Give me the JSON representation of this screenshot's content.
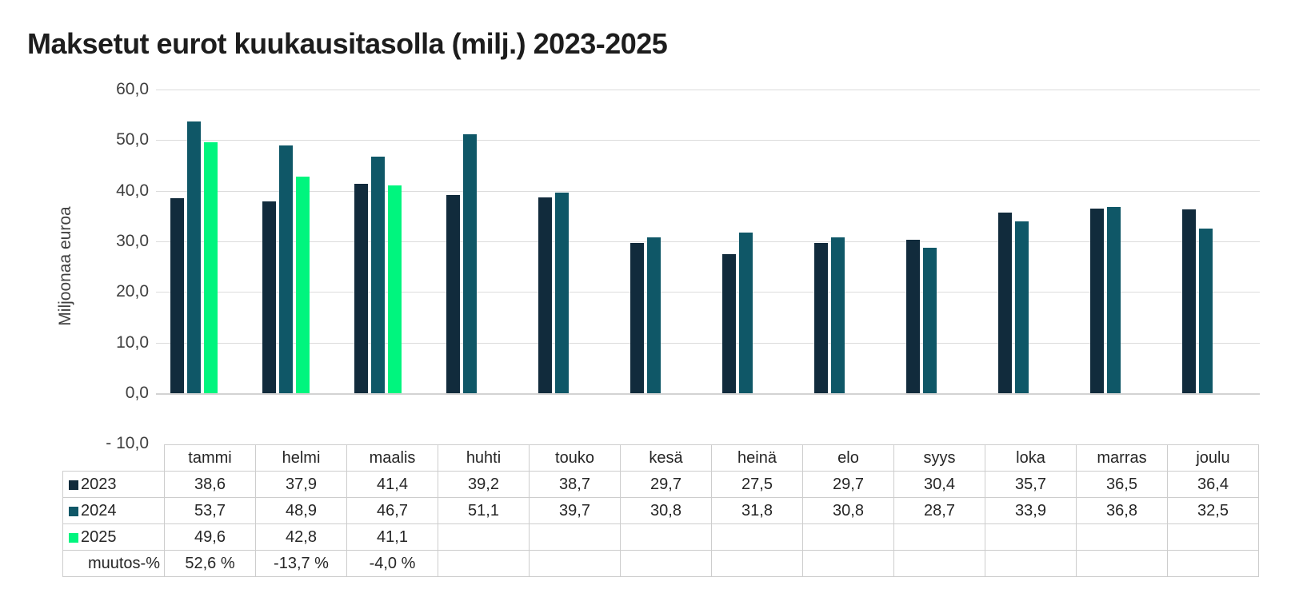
{
  "title": "Maksetut eurot kuukausitasolla (milj.) 2023-2025",
  "y_axis": {
    "label": "Miljoonaa euroa",
    "tick_labels": [
      "60,0",
      "50,0",
      "40,0",
      "30,0",
      "20,0",
      "10,0",
      "0,0",
      "- 10,0"
    ],
    "tick_values": [
      60,
      50,
      40,
      30,
      20,
      10,
      0,
      -10
    ]
  },
  "chart_data": {
    "type": "bar",
    "title": "Maksetut eurot kuukausitasolla (milj.) 2023-2025",
    "xlabel": "",
    "ylabel": "Miljoonaa euroa",
    "ylim": [
      -10,
      60
    ],
    "gridline_step": 10,
    "grid": true,
    "legend_position": "data-table-row-headers",
    "categories": [
      "tammi",
      "helmi",
      "maalis",
      "huhti",
      "touko",
      "kesä",
      "heinä",
      "elo",
      "syys",
      "loka",
      "marras",
      "joulu"
    ],
    "series": [
      {
        "name": "2023",
        "color": "#112B3C",
        "values": [
          38.6,
          37.9,
          41.4,
          39.2,
          38.7,
          29.7,
          27.5,
          29.7,
          30.4,
          35.7,
          36.5,
          36.4
        ]
      },
      {
        "name": "2024",
        "color": "#0F5767",
        "values": [
          53.7,
          48.9,
          46.7,
          51.1,
          39.7,
          30.8,
          31.8,
          30.8,
          28.7,
          33.9,
          36.8,
          32.5
        ]
      },
      {
        "name": "2025",
        "color": "#00F57E",
        "values": [
          49.6,
          42.8,
          41.1,
          null,
          null,
          null,
          null,
          null,
          null,
          null,
          null,
          null
        ]
      }
    ]
  },
  "table": {
    "rows": [
      {
        "label": "2023",
        "swatch": "#112B3C",
        "cells": [
          "38,6",
          "37,9",
          "41,4",
          "39,2",
          "38,7",
          "29,7",
          "27,5",
          "29,7",
          "30,4",
          "35,7",
          "36,5",
          "36,4"
        ]
      },
      {
        "label": "2024",
        "swatch": "#0F5767",
        "cells": [
          "53,7",
          "48,9",
          "46,7",
          "51,1",
          "39,7",
          "30,8",
          "31,8",
          "30,8",
          "28,7",
          "33,9",
          "36,8",
          "32,5"
        ]
      },
      {
        "label": "2025",
        "swatch": "#00F57E",
        "cells": [
          "49,6",
          "42,8",
          "41,1",
          "",
          "",
          "",
          "",
          "",
          "",
          "",
          "",
          ""
        ]
      },
      {
        "label": "muutos-%",
        "swatch": null,
        "cells": [
          "52,6 %",
          "-13,7 %",
          "-4,0 %",
          "",
          "",
          "",
          "",
          "",
          "",
          "",
          "",
          ""
        ]
      }
    ]
  },
  "colors": {
    "title_text": "#1d1d1d",
    "axis_text": "#3f3f3f",
    "table_text": "#262626",
    "gridline": "#dcdcdc",
    "table_border": "#cdcdcd",
    "background": "#ffffff"
  }
}
